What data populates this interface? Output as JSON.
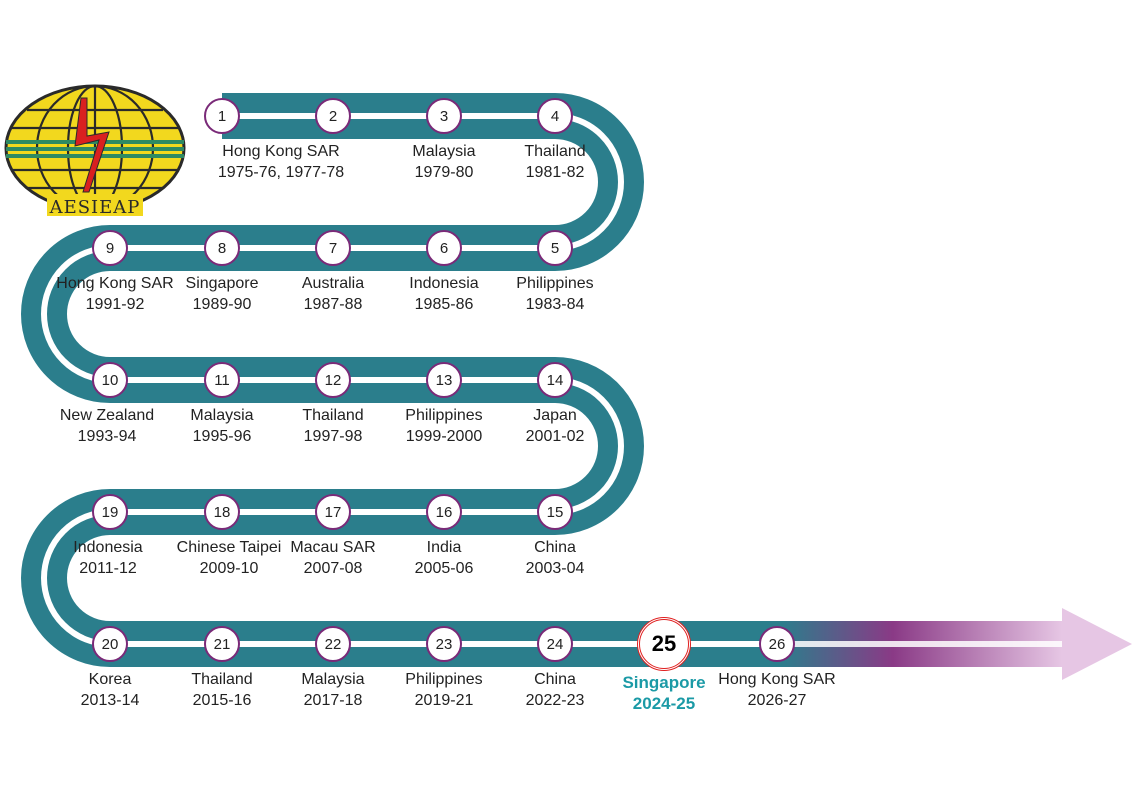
{
  "logo": {
    "text": "AESIEAP"
  },
  "colors": {
    "road": "#2b7e8c",
    "circle_border": "#7a2a78",
    "highlight_ring": "#e02020",
    "highlight_text": "#1b9aa6",
    "arrow": "#e8c8e6"
  },
  "stops": [
    {
      "number": "1",
      "country": "Hong Kong SAR",
      "years": "1975-76, 1977-78"
    },
    {
      "number": "2",
      "country": "",
      "years": ""
    },
    {
      "number": "3",
      "country": "Malaysia",
      "years": "1979-80"
    },
    {
      "number": "4",
      "country": "Thailand",
      "years": "1981-82"
    },
    {
      "number": "5",
      "country": "Philippines",
      "years": "1983-84"
    },
    {
      "number": "6",
      "country": "Indonesia",
      "years": "1985-86"
    },
    {
      "number": "7",
      "country": "Australia",
      "years": "1987-88"
    },
    {
      "number": "8",
      "country": "Singapore",
      "years": "1989-90"
    },
    {
      "number": "9",
      "country": "Hong Kong SAR",
      "years": "1991-92"
    },
    {
      "number": "10",
      "country": "New Zealand",
      "years": "1993-94"
    },
    {
      "number": "11",
      "country": "Malaysia",
      "years": "1995-96"
    },
    {
      "number": "12",
      "country": "Thailand",
      "years": "1997-98"
    },
    {
      "number": "13",
      "country": "Philippines",
      "years": "1999-2000"
    },
    {
      "number": "14",
      "country": "Japan",
      "years": "2001-02"
    },
    {
      "number": "15",
      "country": "China",
      "years": "2003-04"
    },
    {
      "number": "16",
      "country": "India",
      "years": "2005-06"
    },
    {
      "number": "17",
      "country": "Macau SAR",
      "years": "2007-08"
    },
    {
      "number": "18",
      "country": "Chinese Taipei",
      "years": "2009-10"
    },
    {
      "number": "19",
      "country": "Indonesia",
      "years": "2011-12"
    },
    {
      "number": "20",
      "country": "Korea",
      "years": "2013-14"
    },
    {
      "number": "21",
      "country": "Thailand",
      "years": "2015-16"
    },
    {
      "number": "22",
      "country": "Malaysia",
      "years": "2017-18"
    },
    {
      "number": "23",
      "country": "Philippines",
      "years": "2019-21"
    },
    {
      "number": "24",
      "country": "China",
      "years": "2022-23"
    },
    {
      "number": "25",
      "country": "Singapore",
      "years": "2024-25",
      "highlight": true
    },
    {
      "number": "26",
      "country": "Hong Kong SAR",
      "years": "2026-27"
    }
  ]
}
